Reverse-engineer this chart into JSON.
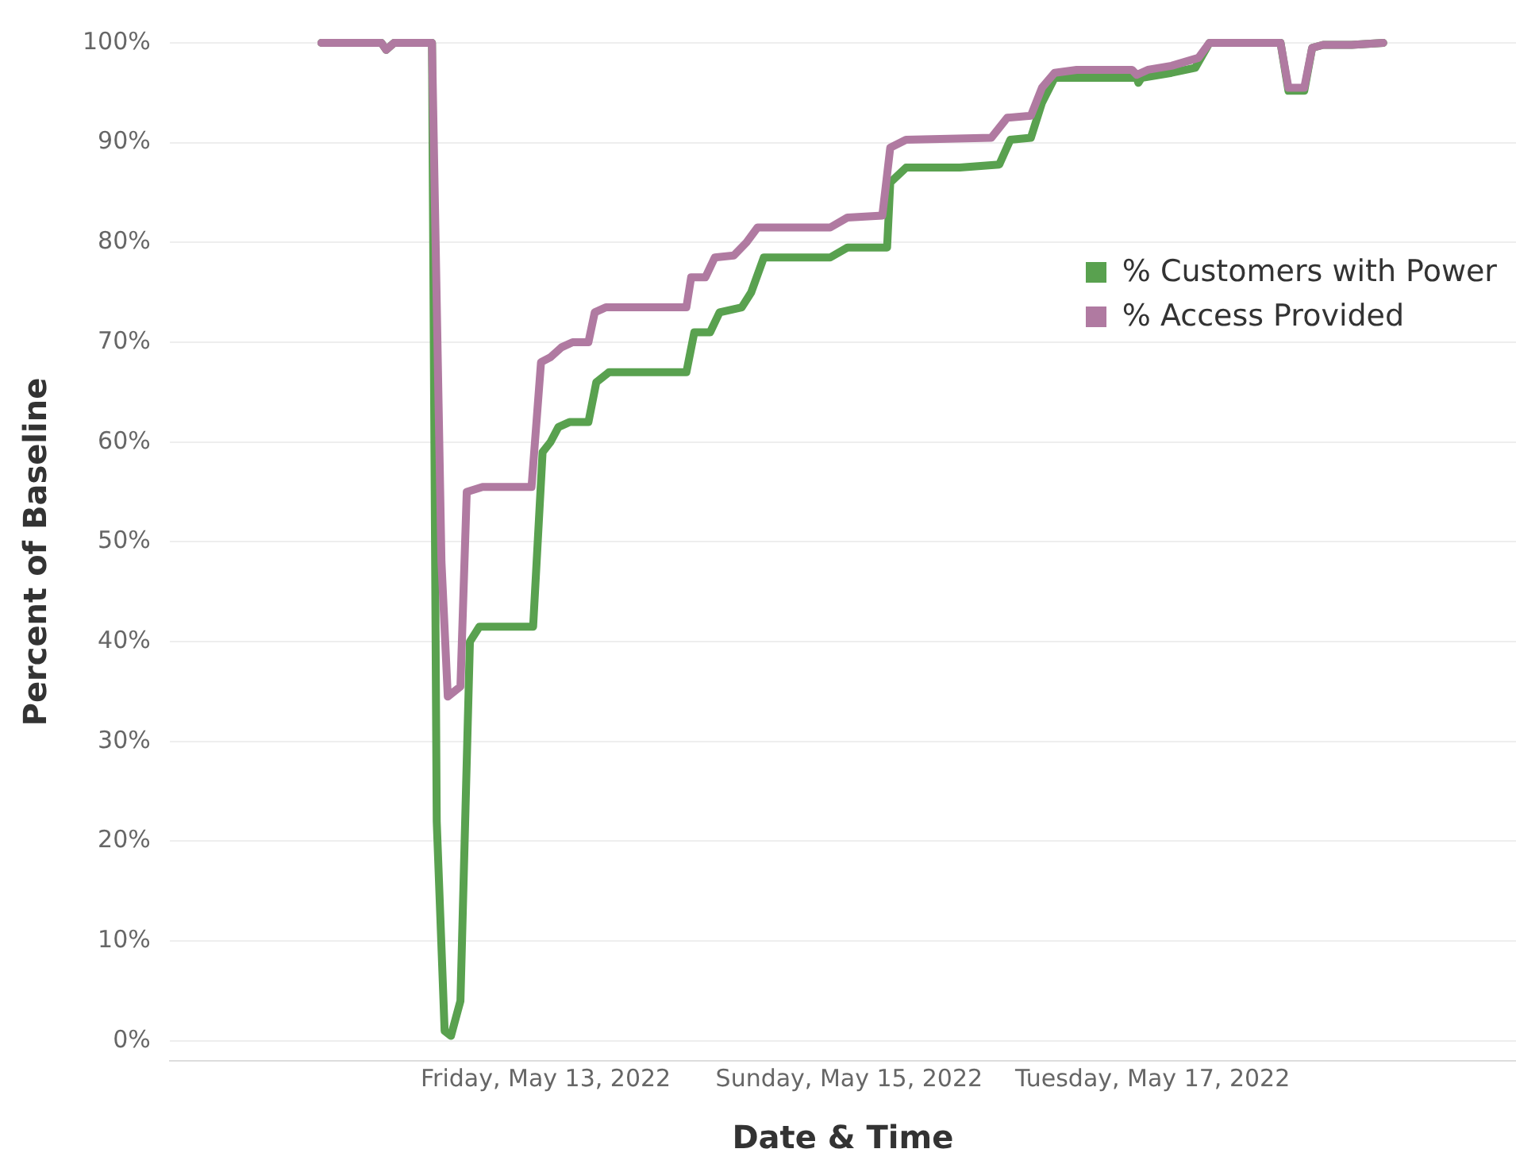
{
  "chart_data": {
    "type": "line",
    "xlabel": "Date & Time",
    "ylabel": "Percent of Baseline",
    "xlim": [
      "2022-05-10T12:30",
      "2022-05-19T09:30"
    ],
    "xticks": [
      {
        "value": "2022-05-13",
        "label": "Friday, May 13, 2022"
      },
      {
        "value": "2022-05-15",
        "label": "Sunday, May 15, 2022"
      },
      {
        "value": "2022-05-17",
        "label": "Tuesday, May 17, 2022"
      }
    ],
    "ylim": [
      -2,
      100
    ],
    "yticks": [
      {
        "value": 0,
        "label": "0%"
      },
      {
        "value": 10,
        "label": "10%"
      },
      {
        "value": 20,
        "label": "20%"
      },
      {
        "value": 30,
        "label": "30%"
      },
      {
        "value": 40,
        "label": "40%"
      },
      {
        "value": 50,
        "label": "50%"
      },
      {
        "value": 60,
        "label": "60%"
      },
      {
        "value": 70,
        "label": "70%"
      },
      {
        "value": 80,
        "label": "80%"
      },
      {
        "value": 90,
        "label": "90%"
      },
      {
        "value": 100,
        "label": "100%"
      }
    ],
    "grid": "y",
    "legend": "top right",
    "marker": "none",
    "line_style": "solid",
    "series": [
      {
        "name": "% Access Provided",
        "color": "#b07aa1",
        "x": [
          "2022-05-11T12:30",
          "2022-05-11T22:00",
          "2022-05-11T22:45",
          "2022-05-12T00:00",
          "2022-05-12T06:00",
          "2022-05-12T07:30",
          "2022-05-12T08:30",
          "2022-05-12T10:30",
          "2022-05-12T11:30",
          "2022-05-12T14:00",
          "2022-05-12T21:45",
          "2022-05-12T23:15",
          "2022-05-13T00:45",
          "2022-05-13T02:30",
          "2022-05-13T04:15",
          "2022-05-13T06:45",
          "2022-05-13T07:45",
          "2022-05-13T09:30",
          "2022-05-13T22:15",
          "2022-05-13T23:00",
          "2022-05-14T01:15",
          "2022-05-14T02:45",
          "2022-05-14T05:45",
          "2022-05-14T07:45",
          "2022-05-14T09:30",
          "2022-05-14T21:00",
          "2022-05-14T23:45",
          "2022-05-15T05:15",
          "2022-05-15T06:30",
          "2022-05-15T09:00",
          "2022-05-15T22:30",
          "2022-05-16T01:00",
          "2022-05-16T04:45",
          "2022-05-16T06:30",
          "2022-05-16T08:30",
          "2022-05-16T12:00",
          "2022-05-16T20:45",
          "2022-05-16T21:30",
          "2022-05-16T23:15",
          "2022-05-17T03:00",
          "2022-05-17T07:15",
          "2022-05-17T09:00",
          "2022-05-17T20:15",
          "2022-05-17T21:30",
          "2022-05-18T00:00",
          "2022-05-18T01:15",
          "2022-05-18T03:00",
          "2022-05-18T07:30",
          "2022-05-18T12:30"
        ],
        "values": [
          100,
          100,
          99.3,
          100,
          100,
          48,
          34.5,
          35.5,
          55,
          55.5,
          55.5,
          68,
          68.5,
          69.5,
          70,
          70,
          73,
          73.5,
          73.5,
          76.5,
          76.5,
          78.5,
          78.7,
          80,
          81.5,
          81.5,
          82.5,
          82.7,
          89.5,
          90.3,
          90.5,
          92.5,
          92.7,
          95.5,
          97,
          97.3,
          97.3,
          96.8,
          97.3,
          97.7,
          98.5,
          100,
          100,
          95.5,
          95.5,
          99.5,
          99.8,
          99.8,
          100
        ]
      },
      {
        "name": "% Customers with Power",
        "color": "#59a14f",
        "x": [
          "2022-05-11T12:30",
          "2022-05-11T22:00",
          "2022-05-11T22:45",
          "2022-05-12T00:00",
          "2022-05-12T06:00",
          "2022-05-12T06:45",
          "2022-05-12T08:00",
          "2022-05-12T09:00",
          "2022-05-12T10:30",
          "2022-05-12T12:00",
          "2022-05-12T13:30",
          "2022-05-12T22:00",
          "2022-05-12T23:30",
          "2022-05-13T00:45",
          "2022-05-13T02:00",
          "2022-05-13T03:45",
          "2022-05-13T06:45",
          "2022-05-13T08:00",
          "2022-05-13T10:00",
          "2022-05-13T22:15",
          "2022-05-13T23:30",
          "2022-05-14T02:00",
          "2022-05-14T03:30",
          "2022-05-14T07:00",
          "2022-05-14T08:30",
          "2022-05-14T10:30",
          "2022-05-14T21:00",
          "2022-05-14T23:45",
          "2022-05-15T06:00",
          "2022-05-15T06:30",
          "2022-05-15T09:00",
          "2022-05-15T17:30",
          "2022-05-15T23:45",
          "2022-05-16T01:30",
          "2022-05-16T04:45",
          "2022-05-16T06:30",
          "2022-05-16T08:30",
          "2022-05-16T11:00",
          "2022-05-16T21:30",
          "2022-05-16T21:45",
          "2022-05-16T22:15",
          "2022-05-17T03:00",
          "2022-05-17T06:45",
          "2022-05-17T09:00",
          "2022-05-17T20:15",
          "2022-05-17T21:30",
          "2022-05-18T00:00",
          "2022-05-18T01:15",
          "2022-05-18T03:00",
          "2022-05-18T07:30",
          "2022-05-18T12:30"
        ],
        "values": [
          100,
          100,
          99.3,
          100,
          100,
          22,
          1,
          0.5,
          4,
          40,
          41.5,
          41.5,
          59,
          60,
          61.5,
          62,
          62,
          66,
          67,
          67,
          71,
          71,
          73,
          73.5,
          75,
          78.5,
          78.5,
          79.5,
          79.5,
          86,
          87.5,
          87.5,
          87.8,
          90.3,
          90.5,
          94,
          96.5,
          96.5,
          96.5,
          96,
          96.5,
          97,
          97.5,
          100,
          100,
          95.2,
          95.2,
          99.5,
          99.8,
          99.8,
          100
        ]
      }
    ]
  }
}
